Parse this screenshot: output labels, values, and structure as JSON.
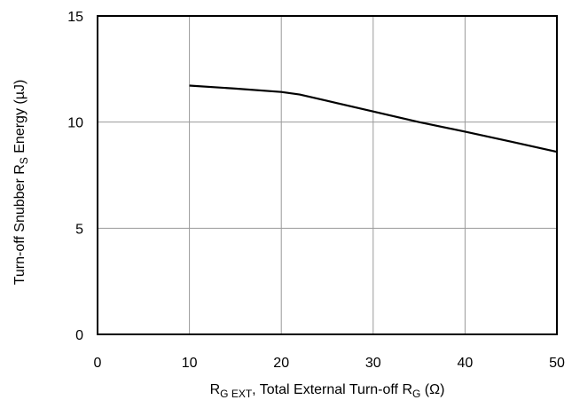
{
  "chart_data": {
    "type": "line",
    "title": "",
    "xlabel": {
      "R": "R",
      "sub1": "G  EXT",
      "middle": ", Total External Turn-off R",
      "sub2": "G",
      "end": " (Ω)"
    },
    "ylabel": {
      "start": "Turn-off Snubber R",
      "sub": "S",
      "end": " Energy (µJ)"
    },
    "xlim": [
      0,
      50
    ],
    "ylim": [
      0,
      15
    ],
    "xticks": [
      0,
      10,
      20,
      30,
      40,
      50
    ],
    "yticks": [
      0,
      5,
      10,
      15
    ],
    "xtick_labels": [
      "0",
      "10",
      "20",
      "30",
      "40",
      "50"
    ],
    "ytick_labels": [
      "0",
      "5",
      "10",
      "15"
    ],
    "grid": true,
    "series": [
      {
        "color": "#000000",
        "x": [
          10,
          15,
          20,
          22,
          25,
          30,
          35,
          40,
          45,
          50
        ],
        "y": [
          11.72,
          11.58,
          11.42,
          11.3,
          11.0,
          10.5,
          10.0,
          9.55,
          9.08,
          8.6
        ]
      }
    ]
  }
}
